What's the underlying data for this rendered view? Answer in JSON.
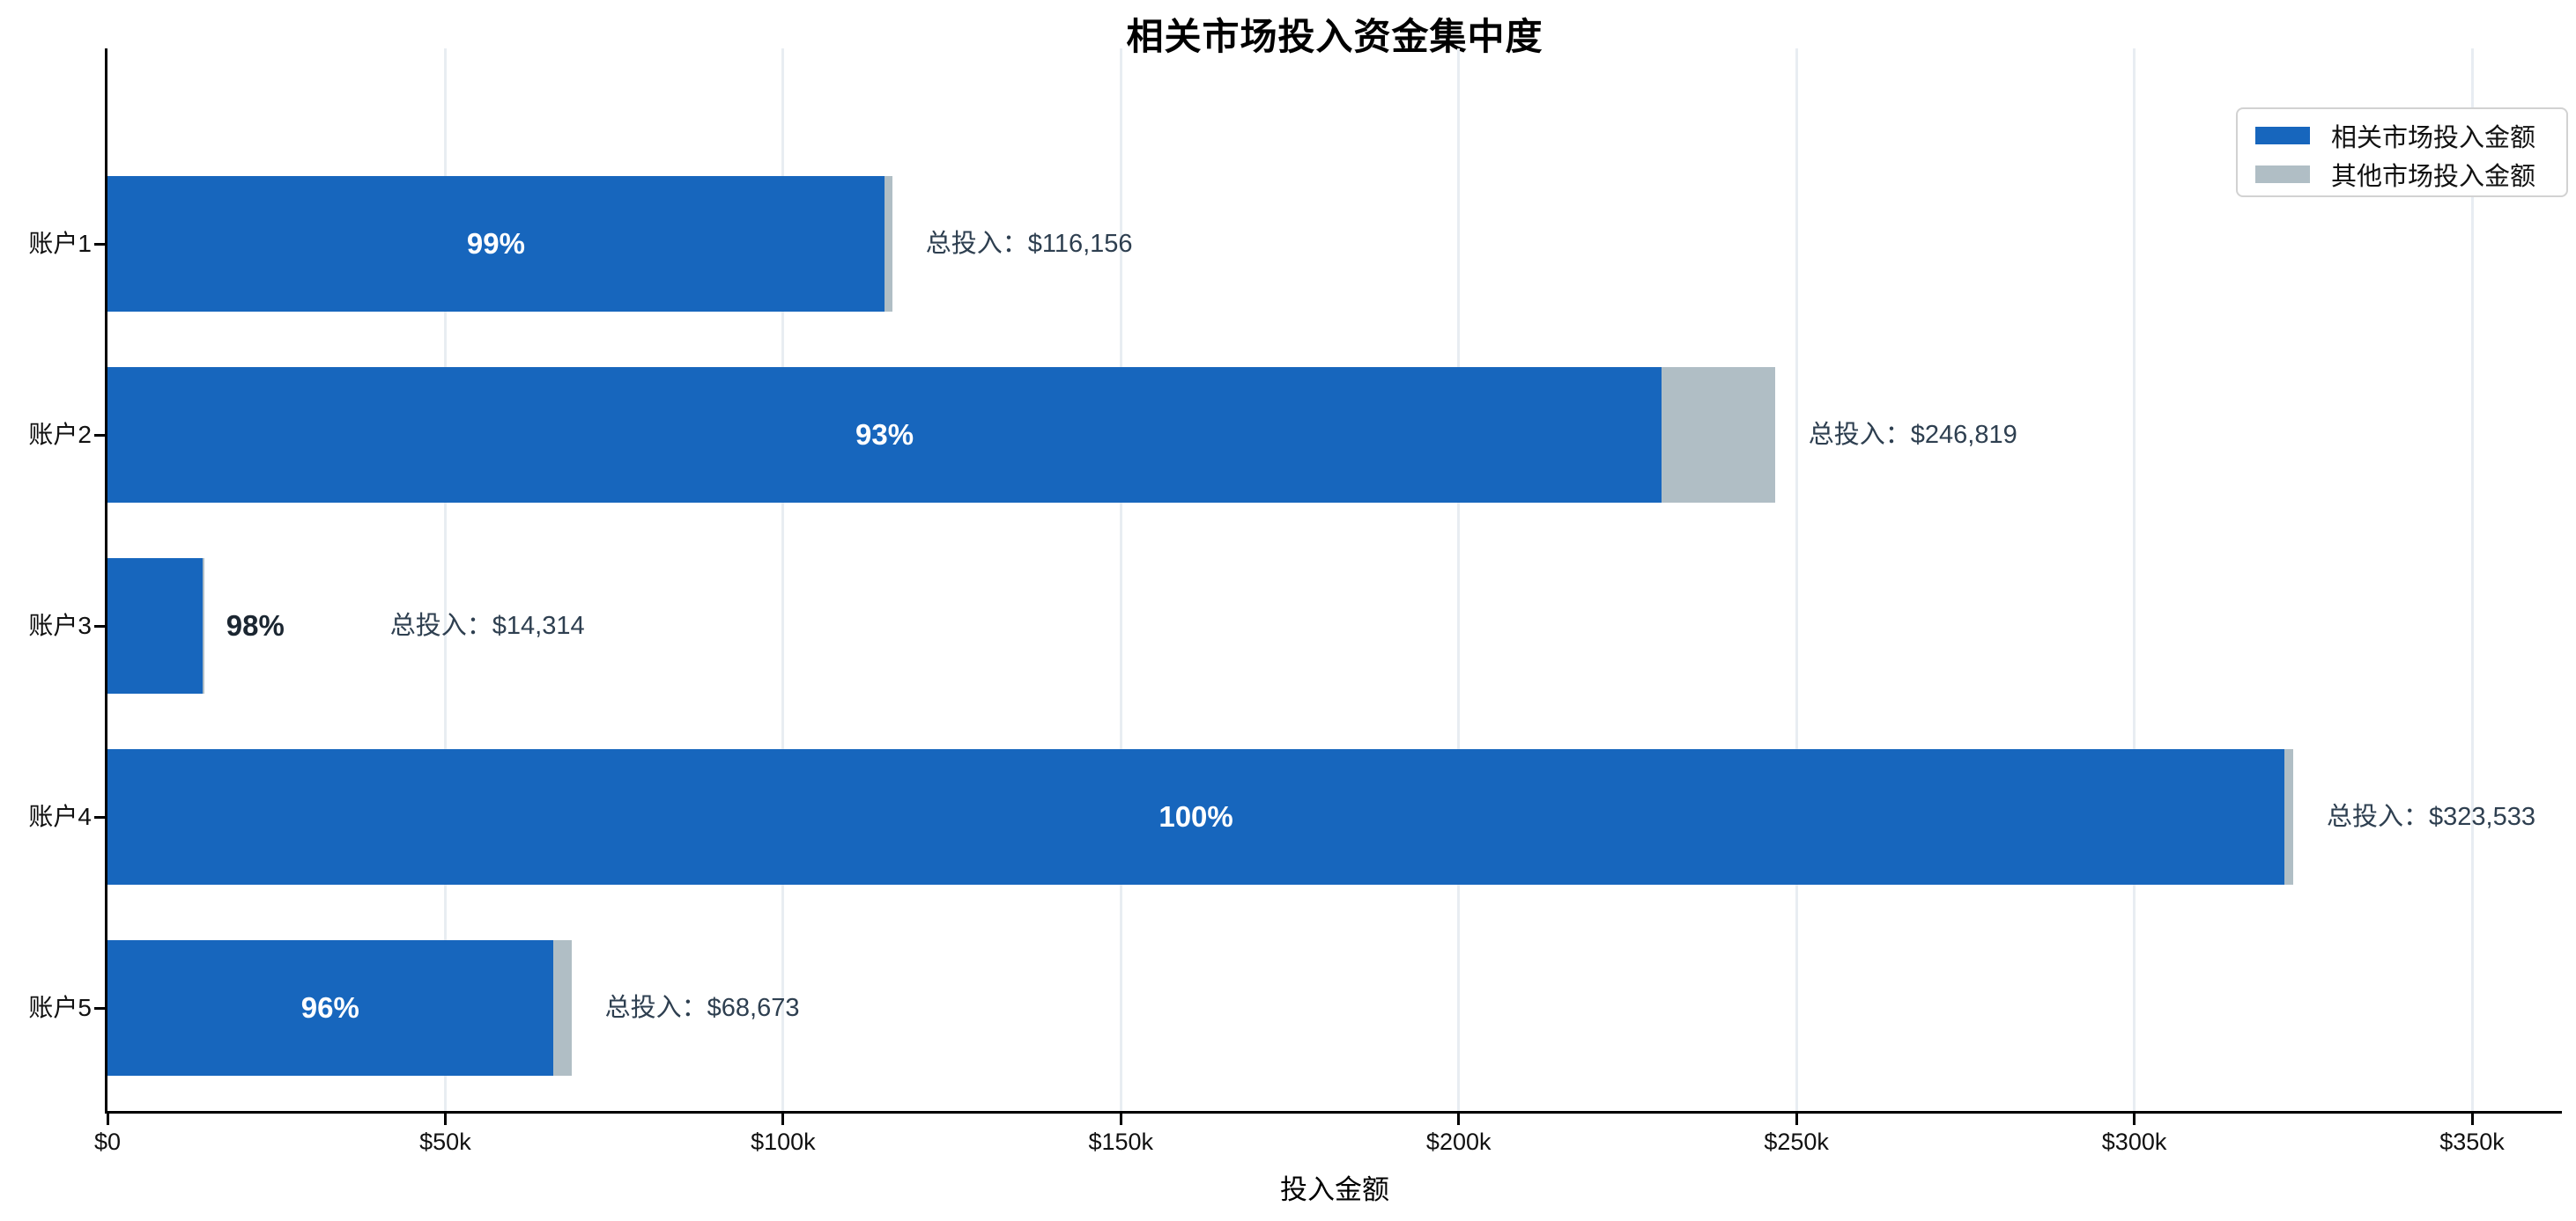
{
  "chart_data": {
    "type": "bar",
    "orientation": "horizontal",
    "stacked": true,
    "title": "相关市场投入资金集中度",
    "xlabel": "投入金额",
    "ylabel": "",
    "grid": "vertical-light",
    "legend_position": "upper-right",
    "colors": {
      "related": "#1766bd",
      "other": "#b0bec5",
      "gridline": "#e8edf2",
      "axis": "#000000",
      "annotation_text": "#2e3f50",
      "outside_pct_text": "#1b2631",
      "inside_pct_text": "#ffffff"
    },
    "x_axis": {
      "tick_values": [
        0,
        50000,
        100000,
        150000,
        200000,
        250000,
        300000,
        350000
      ],
      "tick_labels": [
        "$0",
        "$50k",
        "$100k",
        "$150k",
        "$200k",
        "$250k",
        "$300k",
        "$350k"
      ],
      "xlim": [
        0,
        363400
      ]
    },
    "legend": [
      {
        "label": "相关市场投入金额",
        "color": "#1766bd"
      },
      {
        "label": "其他市场投入金额",
        "color": "#b0bec5"
      }
    ],
    "categories": [
      "账户1",
      "账户2",
      "账户3",
      "账户4",
      "账户5"
    ],
    "accounts": [
      {
        "name": "账户1",
        "total": 116156,
        "percent_label": "99%",
        "fill_fraction": 0.99,
        "total_label": "总投入：$116,156",
        "pct_outside": false
      },
      {
        "name": "账户2",
        "total": 246819,
        "percent_label": "93%",
        "fill_fraction": 0.932,
        "total_label": "总投入：$246,819",
        "pct_outside": false
      },
      {
        "name": "账户3",
        "total": 14314,
        "percent_label": "98%",
        "fill_fraction": 0.98,
        "total_label": "总投入：$14,314",
        "pct_outside": true
      },
      {
        "name": "账户4",
        "total": 323533,
        "percent_label": "100%",
        "fill_fraction": 0.996,
        "total_label": "总投入：$323,533",
        "pct_outside": false
      },
      {
        "name": "账户5",
        "total": 68673,
        "percent_label": "96%",
        "fill_fraction": 0.96,
        "total_label": "总投入：$68,673",
        "pct_outside": false
      }
    ]
  }
}
